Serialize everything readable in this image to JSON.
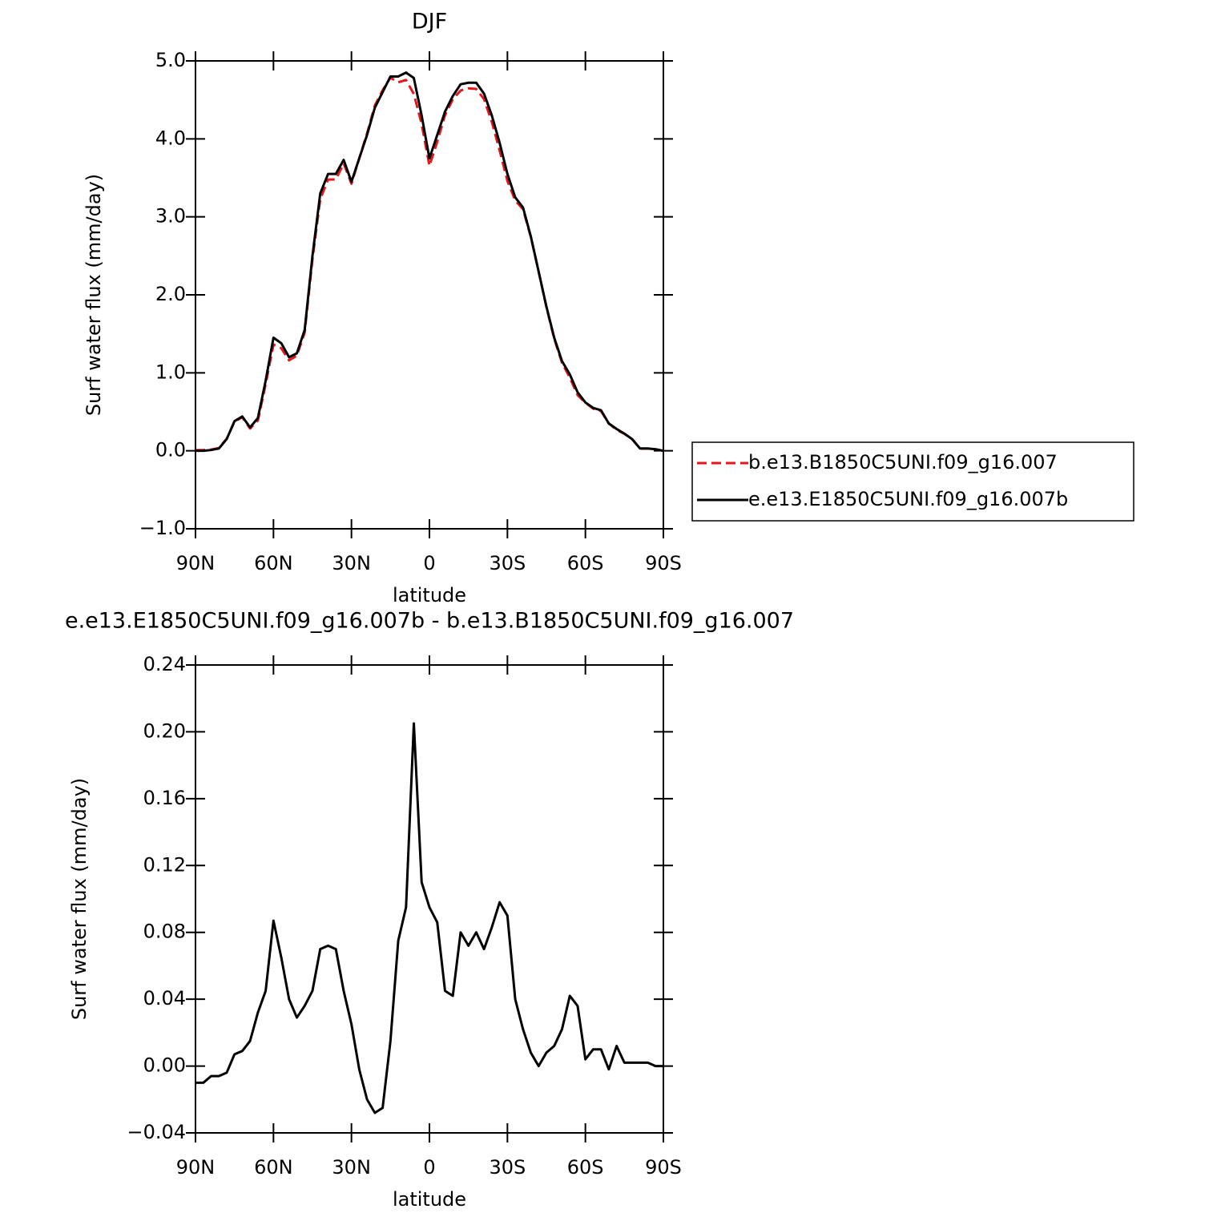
{
  "chart_data": [
    {
      "type": "line",
      "title": "DJF",
      "xlabel": "latitude",
      "ylabel": "Surf water flux (mm/day)",
      "x": [
        90,
        87,
        84,
        81,
        78,
        75,
        72,
        69,
        66,
        63,
        60,
        57,
        54,
        51,
        48,
        45,
        42,
        39,
        36,
        33,
        30,
        27,
        24,
        21,
        18,
        15,
        12,
        9,
        6,
        3,
        0,
        -3,
        -6,
        -9,
        -12,
        -15,
        -18,
        -21,
        -24,
        -27,
        -30,
        -33,
        -36,
        -39,
        -42,
        -45,
        -48,
        -51,
        -54,
        -57,
        -60,
        -63,
        -66,
        -69,
        -72,
        -75,
        -78,
        -81,
        -84,
        -87,
        -90
      ],
      "series": [
        {
          "name": "b.e13.B1850C5UNI.f09_g16.007",
          "color": "#e8161b",
          "line_style": "dashed",
          "values": [
            0.01,
            0.01,
            0.016,
            0.036,
            0.154,
            0.373,
            0.431,
            0.285,
            0.388,
            0.855,
            1.363,
            1.315,
            1.16,
            1.221,
            1.514,
            2.455,
            3.23,
            3.478,
            3.48,
            3.685,
            3.425,
            3.752,
            4.07,
            4.428,
            4.625,
            4.785,
            4.725,
            4.755,
            4.575,
            4.19,
            3.655,
            3.964,
            4.305,
            4.508,
            4.62,
            4.648,
            4.64,
            4.51,
            4.217,
            3.852,
            3.46,
            3.21,
            3.098,
            2.742,
            2.3,
            1.842,
            1.438,
            1.128,
            0.938,
            0.714,
            0.616,
            0.54,
            0.51,
            0.352,
            0.268,
            0.218,
            0.148,
            0.028,
            0.028,
            0.02,
            0.0
          ]
        },
        {
          "name": "e.e13.E1850C5UNI.f09_g16.007b",
          "color": "#000000",
          "line_style": "solid",
          "values": [
            0.0,
            0.0,
            0.01,
            0.03,
            0.15,
            0.38,
            0.44,
            0.3,
            0.42,
            0.9,
            1.45,
            1.38,
            1.2,
            1.25,
            1.55,
            2.5,
            3.3,
            3.55,
            3.55,
            3.73,
            3.45,
            3.75,
            4.05,
            4.4,
            4.6,
            4.8,
            4.8,
            4.85,
            4.78,
            4.3,
            3.75,
            4.05,
            4.35,
            4.55,
            4.7,
            4.72,
            4.72,
            4.58,
            4.3,
            3.95,
            3.55,
            3.25,
            3.12,
            2.75,
            2.3,
            1.85,
            1.45,
            1.15,
            0.98,
            0.75,
            0.62,
            0.55,
            0.52,
            0.35,
            0.28,
            0.22,
            0.15,
            0.03,
            0.03,
            0.02,
            0.0
          ]
        }
      ],
      "xlim": [
        90,
        -90
      ],
      "xticks": [
        {
          "value": 90,
          "label": "90N"
        },
        {
          "value": 60,
          "label": "60N"
        },
        {
          "value": 30,
          "label": "30N"
        },
        0,
        {
          "value": -30,
          "label": "30S"
        },
        {
          "value": -60,
          "label": "60S"
        },
        {
          "value": -90,
          "label": "90S"
        }
      ],
      "ylim": [
        -1.0,
        5.0
      ],
      "yticks": [
        {
          "value": -1,
          "label": "−1.0"
        },
        {
          "value": 0,
          "label": "0.0"
        },
        {
          "value": 1,
          "label": "1.0"
        },
        {
          "value": 2,
          "label": "2.0"
        },
        {
          "value": 3,
          "label": "3.0"
        },
        {
          "value": 4,
          "label": "4.0"
        },
        {
          "value": 5,
          "label": "5.0"
        }
      ],
      "legend": "right"
    },
    {
      "type": "line",
      "title": "e.e13.E1850C5UNI.f09_g16.007b - b.e13.B1850C5UNI.f09_g16.007",
      "xlabel": "latitude",
      "ylabel": "Surf water flux (mm/day)",
      "x": [
        90,
        87,
        84,
        81,
        78,
        75,
        72,
        69,
        66,
        63,
        60,
        57,
        54,
        51,
        48,
        45,
        42,
        39,
        36,
        33,
        30,
        27,
        24,
        21,
        18,
        15,
        12,
        9,
        6,
        3,
        0,
        -3,
        -6,
        -9,
        -12,
        -15,
        -18,
        -21,
        -24,
        -27,
        -30,
        -33,
        -36,
        -39,
        -42,
        -45,
        -48,
        -51,
        -54,
        -57,
        -60,
        -63,
        -66,
        -69,
        -72,
        -75,
        -78,
        -81,
        -84,
        -87,
        -90
      ],
      "color": "#000000",
      "values": [
        -0.01,
        -0.01,
        -0.006,
        -0.006,
        -0.004,
        0.007,
        0.009,
        0.015,
        0.032,
        0.045,
        0.087,
        0.065,
        0.04,
        0.029,
        0.036,
        0.045,
        0.07,
        0.072,
        0.07,
        0.045,
        0.025,
        -0.002,
        -0.02,
        -0.028,
        -0.025,
        0.015,
        0.075,
        0.095,
        0.205,
        0.11,
        0.095,
        0.086,
        0.045,
        0.042,
        0.08,
        0.072,
        0.08,
        0.07,
        0.083,
        0.098,
        0.09,
        0.04,
        0.022,
        0.008,
        0.0,
        0.008,
        0.012,
        0.022,
        0.042,
        0.036,
        0.004,
        0.01,
        0.01,
        -0.002,
        0.012,
        0.002,
        0.002,
        0.002,
        0.002,
        0.0,
        0.0
      ],
      "xlim": [
        90,
        -90
      ],
      "xticks": [
        {
          "value": 90,
          "label": "90N"
        },
        {
          "value": 60,
          "label": "60N"
        },
        {
          "value": 30,
          "label": "30N"
        },
        0,
        {
          "value": -30,
          "label": "30S"
        },
        {
          "value": -60,
          "label": "60S"
        },
        {
          "value": -90,
          "label": "90S"
        }
      ],
      "ylim": [
        -0.04,
        0.24
      ],
      "yticks": [
        {
          "value": -0.04,
          "label": "−0.04"
        },
        {
          "value": 0,
          "label": "0.00"
        },
        {
          "value": 0.04,
          "label": "0.04"
        },
        {
          "value": 0.08,
          "label": "0.08"
        },
        {
          "value": 0.12,
          "label": "0.12"
        },
        {
          "value": 0.16,
          "label": "0.16"
        },
        {
          "value": 0.2,
          "label": "0.20"
        },
        {
          "value": 0.24,
          "label": "0.24"
        }
      ]
    }
  ]
}
